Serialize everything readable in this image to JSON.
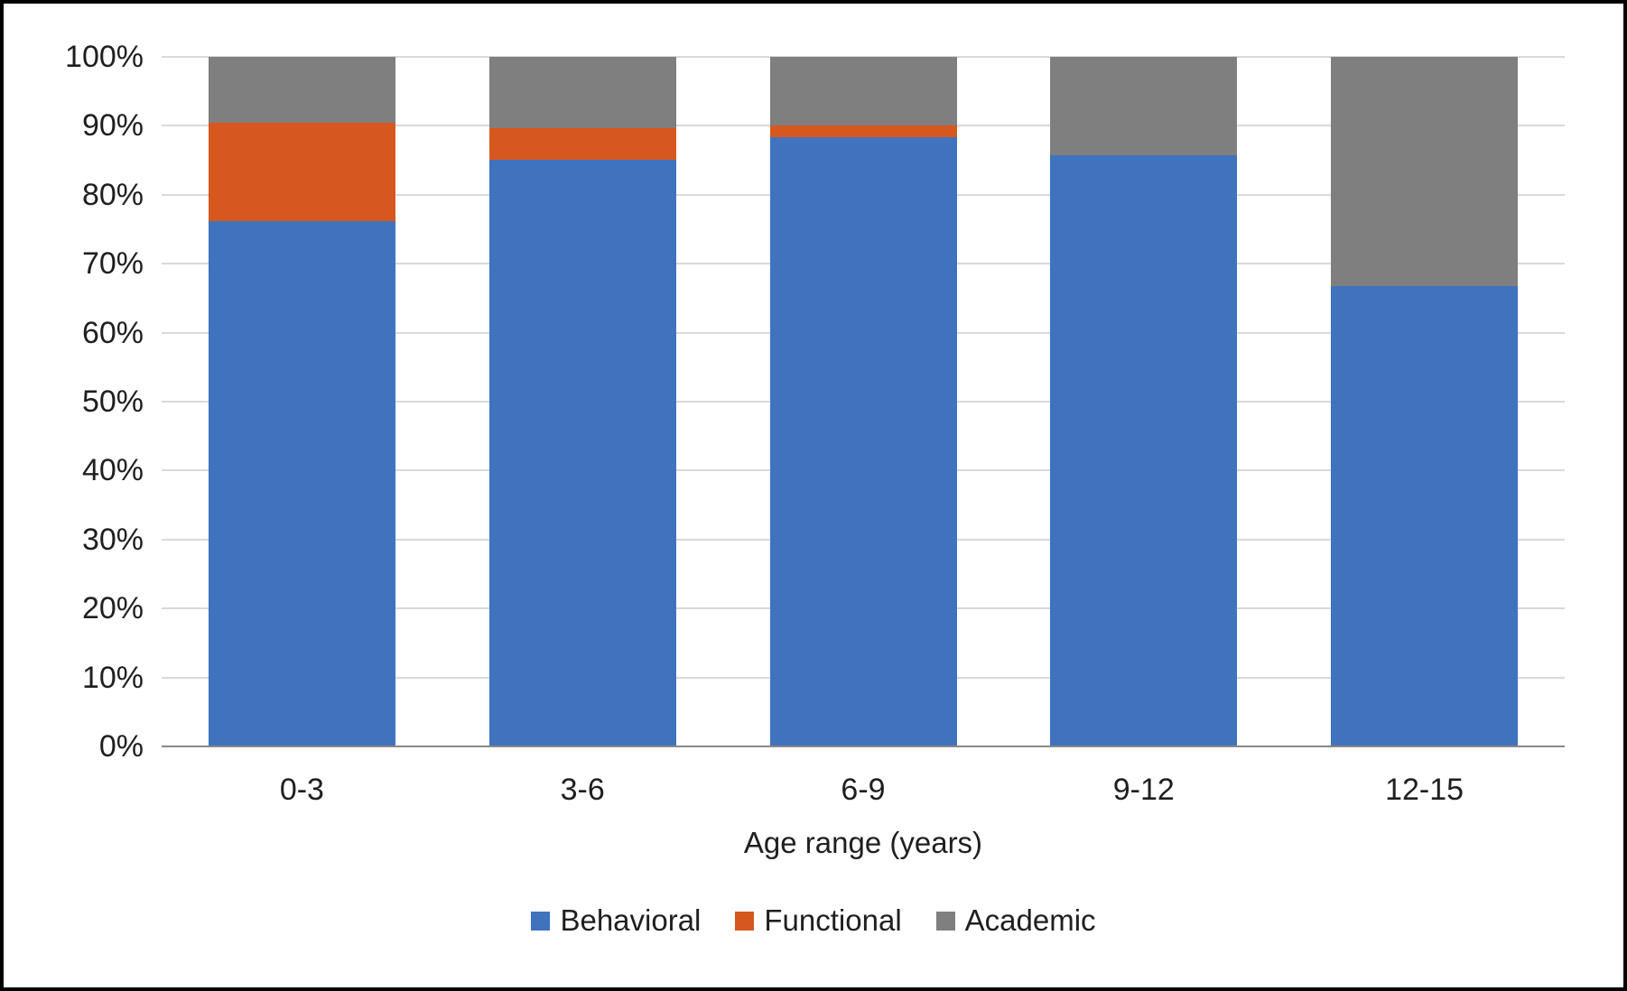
{
  "chart_data": {
    "type": "bar",
    "variant": "100%-stacked-column",
    "title": "",
    "xlabel": "Age range (years)",
    "ylabel": "",
    "categories": [
      "0-3",
      "3-6",
      "6-9",
      "9-12",
      "12-15"
    ],
    "series": [
      {
        "name": "Behavioral",
        "color": "#3f73be",
        "values": [
          76.2,
          85.1,
          88.3,
          85.8,
          66.7
        ]
      },
      {
        "name": "Functional",
        "color": "#d7581f",
        "values": [
          14.3,
          4.6,
          1.7,
          0,
          0
        ]
      },
      {
        "name": "Academic",
        "color": "#7f7f7f",
        "values": [
          9.5,
          10.3,
          10.0,
          14.2,
          33.3
        ]
      }
    ],
    "ylim": [
      0,
      100
    ],
    "ytick_step": 10,
    "ytick_labels": [
      "0%",
      "10%",
      "20%",
      "30%",
      "40%",
      "50%",
      "60%",
      "70%",
      "80%",
      "90%",
      "100%"
    ],
    "grid": true,
    "gridline_color": "#d9d9d9",
    "axis_line_color": "#878787",
    "text_color": "#1f1f1f",
    "background_color": "#ffffff",
    "border_color": "#000000",
    "legend_position": "bottom",
    "bar_width_fraction": 0.666
  }
}
